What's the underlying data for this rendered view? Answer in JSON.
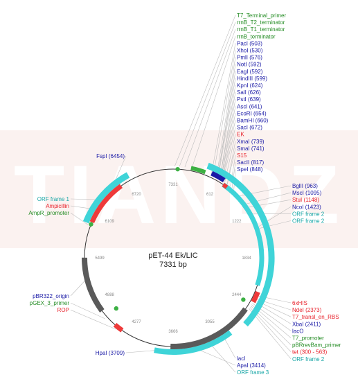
{
  "plasmid": {
    "name": "pET-44 Ek/LIC",
    "size_label": "7331 bp",
    "total_bp": 7331
  },
  "ruler_ticks": [
    "7331",
    "612",
    "1222",
    "1834",
    "2444",
    "3055",
    "3666",
    "4277",
    "4888",
    "5499",
    "6109",
    "6720"
  ],
  "watermark": "TIANDZ",
  "colors": {
    "enzyme": "#1a1aa6",
    "feature": "#228B22",
    "marker": "#e8202a",
    "orf": "#16a5a5",
    "backbone": "#555555",
    "orf_arc": "#3fd4d8",
    "red_arc": "#ee3a3a",
    "grey_arc": "#5a5a5a",
    "green_arc": "#3cb043"
  },
  "labels_top": [
    {
      "text": "T7_Terminal_primer",
      "kind": "feature",
      "bp": 20
    },
    {
      "text": "rrnB_T2_terminator",
      "kind": "feature",
      "bp": 80
    },
    {
      "text": "rrnB_T1_terminator",
      "kind": "feature",
      "bp": 150
    },
    {
      "text": "rrnB_terminator",
      "kind": "feature",
      "bp": 240
    },
    {
      "text": "PacI (503)",
      "kind": "enzyme",
      "bp": 503
    },
    {
      "text": "XhoI (530)",
      "kind": "enzyme",
      "bp": 530
    },
    {
      "text": "PmlI (576)",
      "kind": "enzyme",
      "bp": 576
    },
    {
      "text": "NotI (592)",
      "kind": "enzyme",
      "bp": 592
    },
    {
      "text": "EagI (592)",
      "kind": "enzyme",
      "bp": 592
    },
    {
      "text": "HindIII (599)",
      "kind": "enzyme",
      "bp": 599
    },
    {
      "text": "KpnI (624)",
      "kind": "enzyme",
      "bp": 624
    },
    {
      "text": "SalI (626)",
      "kind": "enzyme",
      "bp": 626
    },
    {
      "text": "PstI (639)",
      "kind": "enzyme",
      "bp": 639
    },
    {
      "text": "AscI (641)",
      "kind": "enzyme",
      "bp": 641
    },
    {
      "text": "EcoRI (654)",
      "kind": "enzyme",
      "bp": 654
    },
    {
      "text": "BamHI (660)",
      "kind": "enzyme",
      "bp": 660
    },
    {
      "text": "SacI (672)",
      "kind": "enzyme",
      "bp": 672
    },
    {
      "text": "EK",
      "kind": "marker",
      "bp": 700
    },
    {
      "text": "XmaI (739)",
      "kind": "enzyme",
      "bp": 739
    },
    {
      "text": "SmaI (741)",
      "kind": "enzyme",
      "bp": 741
    },
    {
      "text": "S15",
      "kind": "marker",
      "bp": 790
    },
    {
      "text": "SacII (817)",
      "kind": "enzyme",
      "bp": 817
    },
    {
      "text": "SpeI (848)",
      "kind": "enzyme",
      "bp": 848
    }
  ],
  "labels_right": [
    {
      "text": "BglII (963)",
      "kind": "enzyme",
      "bp": 963
    },
    {
      "text": "MscI (1095)",
      "kind": "enzyme",
      "bp": 1095
    },
    {
      "text": "StuI (1148)",
      "kind": "marker",
      "bp": 1148
    },
    {
      "text": "NcoI (1423)",
      "kind": "enzyme",
      "bp": 1423
    },
    {
      "text": "ORF frame 2",
      "kind": "orf",
      "bp": 1250
    },
    {
      "text": "ORF frame 2",
      "kind": "orf",
      "bp": 1450
    }
  ],
  "labels_bottom_right": [
    {
      "text": "6xHIS",
      "kind": "marker",
      "bp": 2330
    },
    {
      "text": "NdeI (2373)",
      "kind": "marker",
      "bp": 2373
    },
    {
      "text": "T7_transl_en_RBS",
      "kind": "marker",
      "bp": 2390
    },
    {
      "text": "XbaI (2411)",
      "kind": "enzyme",
      "bp": 2411
    },
    {
      "text": "lacO",
      "kind": "enzyme",
      "bp": 2440
    },
    {
      "text": "T7_promoter",
      "kind": "feature",
      "bp": 2460
    },
    {
      "text": "pBRrevBam_primer",
      "kind": "feature",
      "bp": 2480
    },
    {
      "text": "tet (300 - 563)",
      "kind": "marker",
      "bp": 2500
    },
    {
      "text": "ORF frame 2",
      "kind": "orf",
      "bp": 2520
    },
    {
      "text": "lacI",
      "kind": "enzyme",
      "bp": 3000
    },
    {
      "text": "ApaI (3414)",
      "kind": "enzyme",
      "bp": 3414
    },
    {
      "text": "ORF frame 3",
      "kind": "orf",
      "bp": 3200
    }
  ],
  "labels_left": [
    {
      "text": "FspI (6454)",
      "kind": "enzyme",
      "bp": 6454
    },
    {
      "text": "ORF frame 1",
      "kind": "orf",
      "bp": 6300
    },
    {
      "text": "Ampicillin",
      "kind": "marker",
      "bp": 6150
    },
    {
      "text": "AmpR_promoter",
      "kind": "feature",
      "bp": 5930
    },
    {
      "text": "pBR322_origin",
      "kind": "enzyme",
      "bp": 5200
    },
    {
      "text": "pGEX_3_primer",
      "kind": "feature",
      "bp": 4650
    },
    {
      "text": "ROP",
      "kind": "marker",
      "bp": 4450
    },
    {
      "text": "HpaI (3709)",
      "kind": "enzyme",
      "bp": 3709
    }
  ]
}
